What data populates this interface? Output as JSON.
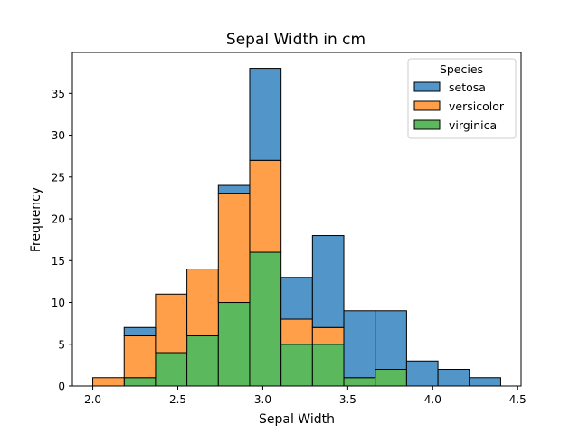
{
  "chart_data": {
    "type": "bar",
    "stacked": true,
    "title": "Sepal Width in cm",
    "xlabel": "Sepal Width",
    "ylabel": "Frequency",
    "xlim": [
      1.88,
      4.52
    ],
    "ylim": [
      0,
      39.9
    ],
    "x_ticks": [
      2.0,
      2.5,
      3.0,
      3.5,
      4.0,
      4.5
    ],
    "x_tick_labels": [
      "2.0",
      "2.5",
      "3.0",
      "3.5",
      "4.0",
      "4.5"
    ],
    "y_ticks": [
      0,
      5,
      10,
      15,
      20,
      25,
      30,
      35
    ],
    "y_tick_labels": [
      "0",
      "5",
      "10",
      "15",
      "20",
      "25",
      "30",
      "35"
    ],
    "bin_edges": [
      2.0,
      2.1846,
      2.3692,
      2.5538,
      2.7385,
      2.9231,
      3.1077,
      3.2923,
      3.4769,
      3.6615,
      3.8462,
      4.0308,
      4.2154,
      4.4
    ],
    "grid": false,
    "legend": {
      "title": "Species",
      "position": "top-right"
    },
    "series": [
      {
        "name": "virginica",
        "color": "#5cb85c",
        "values": [
          0,
          1,
          4,
          6,
          10,
          16,
          5,
          5,
          1,
          2,
          0,
          0,
          0
        ]
      },
      {
        "name": "versicolor",
        "color": "#ff9f4a",
        "values": [
          1,
          5,
          7,
          8,
          13,
          11,
          3,
          2,
          0,
          0,
          0,
          0,
          0
        ]
      },
      {
        "name": "setosa",
        "color": "#5195c9",
        "values": [
          0,
          1,
          0,
          0,
          1,
          11,
          5,
          11,
          8,
          7,
          3,
          2,
          1
        ]
      }
    ],
    "legend_order": [
      "setosa",
      "versicolor",
      "virginica"
    ]
  }
}
